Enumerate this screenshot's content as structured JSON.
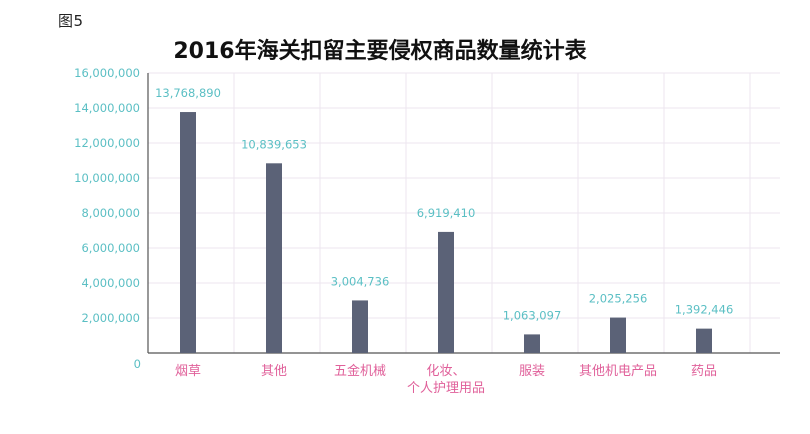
{
  "figure_label": "图5",
  "chart_data": {
    "type": "bar",
    "title": "2016年海关扣留主要侵权商品数量统计表",
    "categories": [
      "烟草",
      "其他",
      "五金机械",
      "化妆、\n个人护理用品",
      "服装",
      "其他机电产品",
      "药品"
    ],
    "values": [
      13768890,
      10839653,
      3004736,
      6919410,
      1063097,
      2025256,
      1392446
    ],
    "value_labels": [
      "13,768,890",
      "10,839,653",
      "3,004,736",
      "6,919,410",
      "1,063,097",
      "2,025,256",
      "1,392,446"
    ],
    "y_ticks": [
      "0",
      "2,000,000",
      "4,000,000",
      "6,000,000",
      "8,000,000",
      "10,000,000",
      "12,000,000",
      "14,000,000",
      "16,000,000"
    ],
    "ylim": [
      0,
      16000000
    ],
    "xlabel": "",
    "ylabel": "",
    "grid": true,
    "colors": {
      "bar": "#5b6277",
      "tick_label": "#5bbfc4",
      "category_label": "#e0609a",
      "grid": "#ece6ef",
      "axis": "#555555"
    }
  }
}
